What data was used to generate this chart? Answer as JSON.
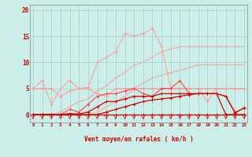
{
  "xlabel": "Vent moyen/en rafales ( km/h )",
  "background_color": "#cceee8",
  "grid_color": "#aacccc",
  "x_values": [
    0,
    1,
    2,
    3,
    4,
    5,
    6,
    7,
    8,
    9,
    10,
    11,
    12,
    13,
    14,
    15,
    16,
    17,
    18,
    19,
    20,
    21,
    22,
    23
  ],
  "line_top_light": [
    5.0,
    6.5,
    2.0,
    5.0,
    6.5,
    5.0,
    5.0,
    4.0,
    3.5,
    5.0,
    5.0,
    5.0,
    5.0,
    5.0,
    5.0,
    5.0,
    5.0,
    5.0,
    5.0,
    2.5,
    5.0,
    5.0,
    5.0,
    5.0
  ],
  "line_peak_light": [
    5.0,
    5.0,
    5.0,
    3.5,
    4.5,
    5.0,
    5.2,
    10.0,
    11.0,
    12.0,
    15.5,
    15.0,
    15.5,
    16.5,
    13.0,
    5.0,
    5.0,
    5.0,
    5.0,
    5.0,
    5.0,
    5.0,
    5.0,
    5.0
  ],
  "line_diag_upper_light": [
    0.0,
    0.0,
    0.0,
    0.5,
    1.5,
    2.5,
    3.0,
    4.5,
    5.5,
    7.0,
    8.0,
    9.5,
    10.0,
    11.0,
    12.0,
    12.5,
    13.0,
    13.0,
    13.0,
    13.0,
    13.0,
    13.0,
    13.0,
    13.0
  ],
  "line_diag_lower_light": [
    0.0,
    0.0,
    0.0,
    0.0,
    0.0,
    0.0,
    0.0,
    0.5,
    1.5,
    2.5,
    3.5,
    5.0,
    6.0,
    7.0,
    7.5,
    8.0,
    8.5,
    9.0,
    9.5,
    9.5,
    9.5,
    9.5,
    9.5,
    9.5
  ],
  "line_mid_red": [
    0.0,
    0.0,
    0.0,
    0.0,
    1.0,
    0.5,
    2.0,
    3.5,
    4.0,
    4.0,
    4.5,
    5.0,
    4.0,
    3.5,
    5.0,
    5.0,
    6.5,
    4.0,
    4.0,
    4.0,
    4.0,
    3.5,
    0.5,
    1.2
  ],
  "line_dark_upper": [
    0.0,
    0.0,
    0.0,
    0.0,
    0.2,
    0.1,
    0.5,
    1.5,
    2.5,
    2.5,
    3.0,
    3.5,
    3.5,
    3.5,
    4.0,
    4.0,
    4.0,
    4.0,
    4.0,
    4.0,
    4.0,
    3.5,
    0.3,
    1.3
  ],
  "line_dark_lower": [
    0.0,
    0.0,
    0.0,
    0.0,
    0.0,
    0.0,
    0.0,
    0.0,
    0.5,
    1.0,
    1.5,
    2.0,
    2.5,
    2.8,
    3.0,
    3.2,
    3.5,
    3.8,
    4.0,
    4.0,
    4.0,
    0.0,
    0.0,
    0.0
  ],
  "line_zero_dark": [
    0.0,
    0.0,
    0.0,
    0.0,
    0.0,
    0.0,
    0.0,
    0.0,
    0.0,
    0.0,
    0.0,
    0.0,
    0.0,
    0.0,
    0.0,
    0.0,
    0.0,
    0.0,
    0.0,
    0.0,
    0.0,
    0.0,
    0.0,
    0.0
  ],
  "color_light": "#ff9999",
  "color_dark": "#cc0000",
  "color_mid": "#ff4444",
  "yticks": [
    0,
    5,
    10,
    15,
    20
  ],
  "ylim": [
    -1.5,
    21
  ],
  "xlim": [
    -0.3,
    23.3
  ]
}
